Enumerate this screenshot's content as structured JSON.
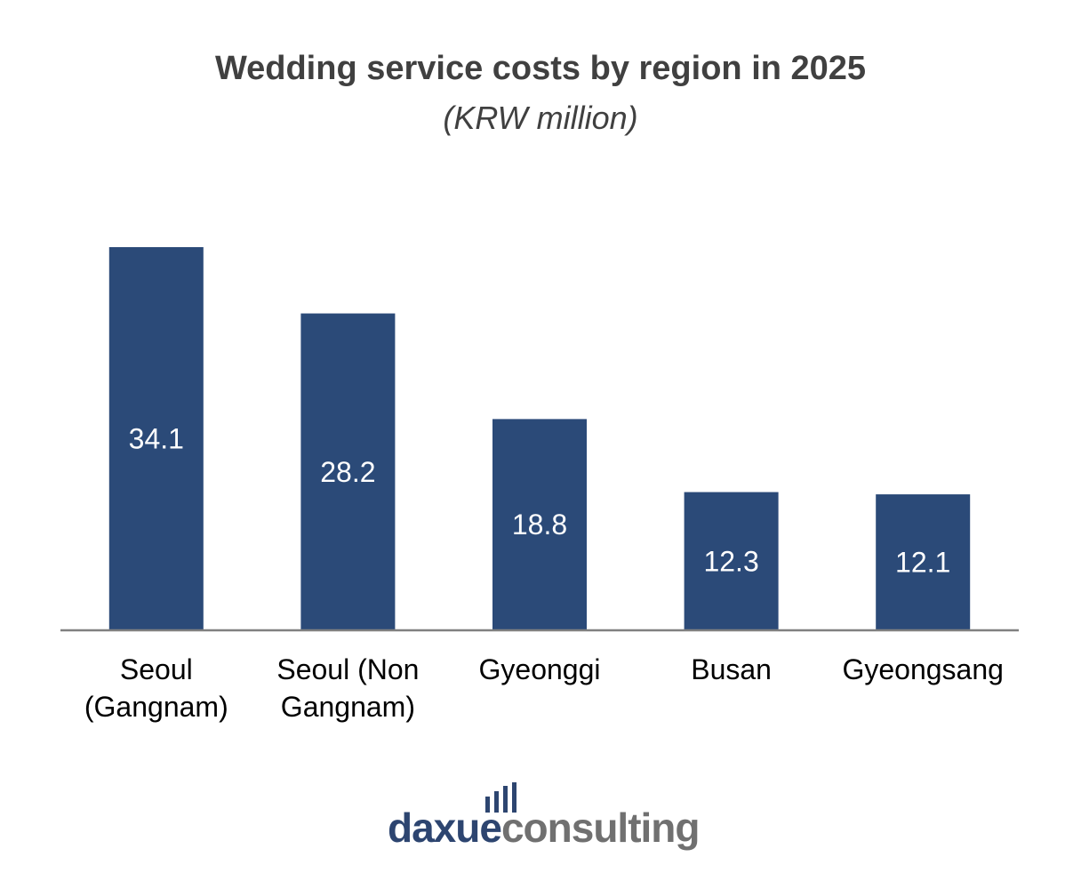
{
  "chart_data": {
    "type": "bar",
    "title": "Wedding service costs by region in 2025",
    "subtitle": "(KRW million)",
    "categories": [
      [
        "Seoul",
        "(Gangnam)"
      ],
      [
        "Seoul (Non",
        "Gangnam)"
      ],
      [
        "Gyeonggi"
      ],
      [
        "Busan"
      ],
      [
        "Gyeongsang"
      ]
    ],
    "values": [
      34.1,
      28.2,
      18.8,
      12.3,
      12.1
    ],
    "value_labels": [
      "34.1",
      "28.2",
      "18.8",
      "12.3",
      "12.1"
    ],
    "bar_color": "#2b4a78",
    "label_color": "#ffffff",
    "axis_color": "#808080",
    "grid": false,
    "legend": "none"
  },
  "logo": {
    "part1": "daxue",
    "part2": "consulting",
    "icon": "bar-chart-icon",
    "color_dark": "#2d4570",
    "color_grey": "#707070"
  }
}
